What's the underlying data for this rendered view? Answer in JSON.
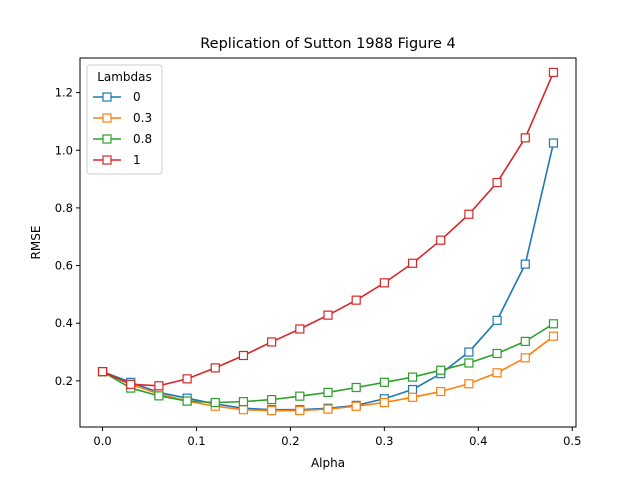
{
  "chart_data": {
    "type": "line",
    "title": "Replication of Sutton 1988 Figure 4",
    "xlabel": "Alpha",
    "ylabel": "RMSE",
    "xlim": [
      -0.024,
      0.504
    ],
    "ylim": [
      0.04,
      1.32
    ],
    "xticks": [
      0.0,
      0.1,
      0.2,
      0.3,
      0.4,
      0.5
    ],
    "xtick_labels": [
      "0.0",
      "0.1",
      "0.2",
      "0.3",
      "0.4",
      "0.5"
    ],
    "yticks": [
      0.2,
      0.4,
      0.6,
      0.8,
      1.0,
      1.2
    ],
    "ytick_labels": [
      "0.2",
      "0.4",
      "0.6",
      "0.8",
      "1.0",
      "1.2"
    ],
    "grid": false,
    "legend": {
      "title": "Lambdas",
      "position": "top-left"
    },
    "x": [
      0.0,
      0.03,
      0.06,
      0.09,
      0.12,
      0.15,
      0.18,
      0.21,
      0.24,
      0.27,
      0.3,
      0.33,
      0.36,
      0.39,
      0.42,
      0.45,
      0.48
    ],
    "series": [
      {
        "name": "0",
        "color": "#1f77b4",
        "values": [
          0.232,
          0.195,
          0.16,
          0.14,
          0.12,
          0.105,
          0.1,
          0.1,
          0.105,
          0.115,
          0.138,
          0.17,
          0.225,
          0.3,
          0.41,
          0.605,
          1.025
        ]
      },
      {
        "name": "0.3",
        "color": "#ff7f0e",
        "values": [
          0.232,
          0.188,
          0.155,
          0.13,
          0.112,
          0.1,
          0.097,
          0.097,
          0.102,
          0.112,
          0.125,
          0.143,
          0.163,
          0.19,
          0.228,
          0.28,
          0.355
        ]
      },
      {
        "name": "0.8",
        "color": "#2ca02c",
        "values": [
          0.232,
          0.175,
          0.148,
          0.13,
          0.125,
          0.128,
          0.135,
          0.147,
          0.16,
          0.177,
          0.195,
          0.213,
          0.237,
          0.262,
          0.295,
          0.337,
          0.398
        ]
      },
      {
        "name": "1",
        "color": "#d62728",
        "values": [
          0.232,
          0.188,
          0.183,
          0.207,
          0.245,
          0.288,
          0.335,
          0.38,
          0.428,
          0.48,
          0.54,
          0.608,
          0.688,
          0.778,
          0.888,
          1.043,
          1.27
        ]
      }
    ]
  }
}
